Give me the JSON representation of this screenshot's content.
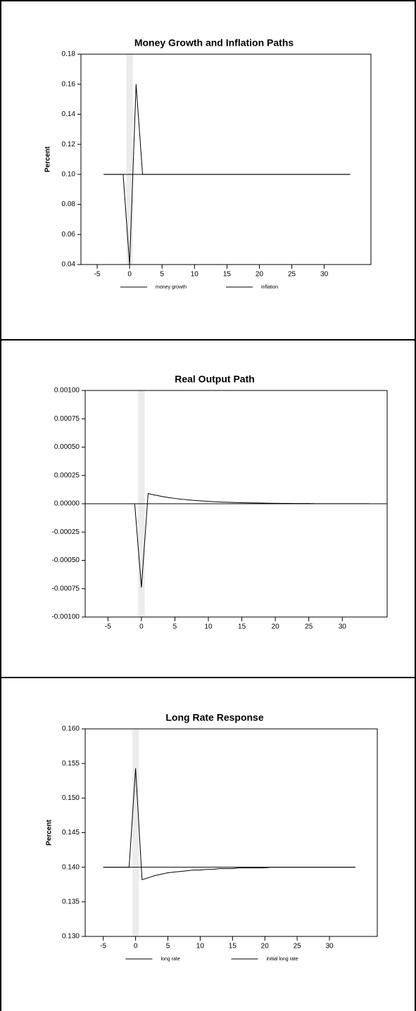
{
  "chart_data": [
    {
      "type": "line",
      "title": "Money Growth and Inflation Paths",
      "y_label": "Percent",
      "x": [
        -4,
        -3,
        -2,
        -1,
        0,
        1,
        2,
        3,
        4,
        5,
        6,
        7,
        8,
        9,
        10,
        11,
        12,
        13,
        14,
        15,
        16,
        17,
        18,
        19,
        20,
        21,
        22,
        23,
        24,
        25,
        26,
        27,
        28,
        29,
        30,
        31,
        32,
        33,
        34
      ],
      "series": [
        {
          "name": "money growth",
          "color": "#000000",
          "values": [
            0.1,
            0.1,
            0.1,
            0.1,
            0.04,
            0.16,
            0.1,
            0.1,
            0.1,
            0.1,
            0.1,
            0.1,
            0.1,
            0.1,
            0.1,
            0.1,
            0.1,
            0.1,
            0.1,
            0.1,
            0.1,
            0.1,
            0.1,
            0.1,
            0.1,
            0.1,
            0.1,
            0.1,
            0.1,
            0.1,
            0.1,
            0.1,
            0.1,
            0.1,
            0.1,
            0.1,
            0.1,
            0.1,
            0.1
          ]
        },
        {
          "name": "inflation",
          "color": "#000000",
          "values": [
            0.1,
            0.1,
            0.1,
            0.1,
            0.1,
            0.1,
            0.1,
            0.1,
            0.1,
            0.1,
            0.1,
            0.1,
            0.1,
            0.1,
            0.1,
            0.1,
            0.1,
            0.1,
            0.1,
            0.1,
            0.1,
            0.1,
            0.1,
            0.1,
            0.1,
            0.1,
            0.1,
            0.1,
            0.1,
            0.1,
            0.1,
            0.1,
            0.1,
            0.1,
            0.1,
            0.1,
            0.1,
            0.1,
            0.1
          ]
        }
      ],
      "shaded_region": [
        -0.5,
        0.5
      ],
      "xlim": [
        -7.5,
        37.2
      ],
      "xticks": [
        -5,
        0,
        5,
        10,
        15,
        20,
        25,
        30
      ],
      "ylim": [
        0.04,
        0.18
      ],
      "yticks": [
        0.04,
        0.06,
        0.08,
        {
          "value": 0.1,
          "label": "0.10"
        },
        0.12,
        0.14,
        0.16,
        0.18
      ],
      "legend": "bottom",
      "zero_line": false
    },
    {
      "type": "line",
      "title": "Real Output Path",
      "x": [
        -5,
        -4,
        -3,
        -2,
        -1,
        0,
        1,
        2,
        3,
        4,
        5,
        6,
        7,
        8,
        9,
        10,
        11,
        12,
        13,
        14,
        15,
        16,
        17,
        18,
        19,
        20,
        21,
        22,
        23,
        24,
        25,
        26,
        27,
        28,
        29,
        30,
        31,
        32,
        33,
        34
      ],
      "series": [
        {
          "color": "#000000",
          "values": [
            0,
            0,
            0,
            0,
            0,
            -0.00074,
            9e-05,
            7.7e-05,
            6.5e-05,
            5.5e-05,
            4.7e-05,
            4e-05,
            3.4e-05,
            2.9e-05,
            2.5e-05,
            2.1e-05,
            1.8e-05,
            1.5e-05,
            1.3e-05,
            1.1e-05,
            9e-06,
            8e-06,
            7e-06,
            6e-06,
            5e-06,
            4e-06,
            3e-06,
            3e-06,
            2e-06,
            2e-06,
            2e-06,
            1e-06,
            1e-06,
            1e-06,
            1e-06,
            1e-06,
            1e-06,
            1e-06,
            1e-06,
            1e-06
          ]
        }
      ],
      "shaded_region": [
        -0.5,
        0.5
      ],
      "xlim": [
        -8.4,
        36.7
      ],
      "xticks": [
        -5,
        0,
        5,
        10,
        15,
        20,
        25,
        30
      ],
      "ylim": [
        -0.001,
        0.001
      ],
      "yticks": [
        {
          "value": -0.001,
          "label": "-0.00100"
        },
        {
          "value": -0.00075,
          "label": "-0.00075"
        },
        {
          "value": -0.0005,
          "label": "-0.00050"
        },
        {
          "value": -0.00025,
          "label": "-0.00025"
        },
        {
          "value": 0,
          "label": "0.00000"
        },
        {
          "value": 0.00025,
          "label": "0.00025"
        },
        {
          "value": 0.0005,
          "label": "0.00050"
        },
        {
          "value": 0.00075,
          "label": "0.00075"
        },
        {
          "value": 0.001,
          "label": "0.00100"
        }
      ],
      "zero_line": true
    },
    {
      "type": "line",
      "title": "Long Rate Response",
      "y_label": "Percent",
      "x": [
        -5,
        -4,
        -3,
        -2,
        -1,
        0,
        1,
        2,
        3,
        4,
        5,
        6,
        7,
        8,
        9,
        10,
        11,
        12,
        13,
        14,
        15,
        16,
        17,
        18,
        19,
        20,
        21,
        22,
        23,
        24,
        25,
        26,
        27,
        28,
        29,
        30,
        31,
        32,
        33,
        34
      ],
      "series": [
        {
          "name": "long rate",
          "color": "#000000",
          "values": [
            0.14,
            0.14,
            0.14,
            0.14,
            0.14,
            0.1543,
            0.1382,
            0.1385,
            0.1388,
            0.139,
            0.1392,
            0.1393,
            0.1394,
            0.1395,
            0.1396,
            0.1396,
            0.1397,
            0.1397,
            0.1398,
            0.1398,
            0.1398,
            0.1399,
            0.1399,
            0.1399,
            0.1399,
            0.1399,
            0.14,
            0.14,
            0.14,
            0.14,
            0.14,
            0.14,
            0.14,
            0.14,
            0.14,
            0.14,
            0.14,
            0.14,
            0.14,
            0.14
          ]
        },
        {
          "name": "initial long rate",
          "color": "#000000",
          "values": [
            0.14,
            0.14,
            0.14,
            0.14,
            0.14,
            0.14,
            0.14,
            0.14,
            0.14,
            0.14,
            0.14,
            0.14,
            0.14,
            0.14,
            0.14,
            0.14,
            0.14,
            0.14,
            0.14,
            0.14,
            0.14,
            0.14,
            0.14,
            0.14,
            0.14,
            0.14,
            0.14,
            0.14,
            0.14,
            0.14,
            0.14,
            0.14,
            0.14,
            0.14,
            0.14,
            0.14,
            0.14,
            0.14,
            0.14,
            0.14
          ]
        }
      ],
      "shaded_region": [
        -0.5,
        0.5
      ],
      "xlim": [
        -7.8,
        37.4
      ],
      "xticks": [
        -5,
        0,
        5,
        10,
        15,
        20,
        25,
        30
      ],
      "ylim": [
        0.13,
        0.16
      ],
      "yticks": [
        {
          "value": 0.13,
          "label": "0.130"
        },
        0.135,
        {
          "value": 0.14,
          "label": "0.140"
        },
        0.145,
        {
          "value": 0.15,
          "label": "0.150"
        },
        0.155,
        {
          "value": 0.16,
          "label": "0.160"
        }
      ],
      "legend": "bottom",
      "zero_line": false
    }
  ]
}
